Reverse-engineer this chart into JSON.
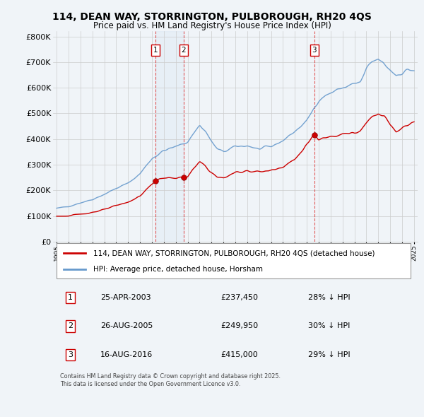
{
  "title": "114, DEAN WAY, STORRINGTON, PULBOROUGH, RH20 4QS",
  "subtitle": "Price paid vs. HM Land Registry's House Price Index (HPI)",
  "background_color": "#f0f4f8",
  "plot_bg_color": "#f0f4f8",
  "grid_color": "#cccccc",
  "red_line_color": "#cc0000",
  "blue_line_color": "#6699cc",
  "sale_marker_color": "#cc0000",
  "ylim": [
    0,
    820000
  ],
  "yticks": [
    0,
    100000,
    200000,
    300000,
    400000,
    500000,
    600000,
    700000,
    800000
  ],
  "ytick_labels": [
    "£0",
    "£100K",
    "£200K",
    "£300K",
    "£400K",
    "£500K",
    "£600K",
    "£700K",
    "£800K"
  ],
  "legend_line1": "114, DEAN WAY, STORRINGTON, PULBOROUGH, RH20 4QS (detached house)",
  "legend_line2": "HPI: Average price, detached house, Horsham",
  "sale1_date": "25-APR-2003",
  "sale1_price": "£237,450",
  "sale1_hpi": "28% ↓ HPI",
  "sale1_year": 2003.32,
  "sale1_value": 237450,
  "sale2_date": "26-AUG-2005",
  "sale2_price": "£249,950",
  "sale2_hpi": "30% ↓ HPI",
  "sale2_year": 2005.65,
  "sale2_value": 249950,
  "sale3_date": "16-AUG-2016",
  "sale3_price": "£415,000",
  "sale3_hpi": "29% ↓ HPI",
  "sale3_year": 2016.62,
  "sale3_value": 415000,
  "footer": "Contains HM Land Registry data © Crown copyright and database right 2025.\nThis data is licensed under the Open Government Licence v3.0."
}
